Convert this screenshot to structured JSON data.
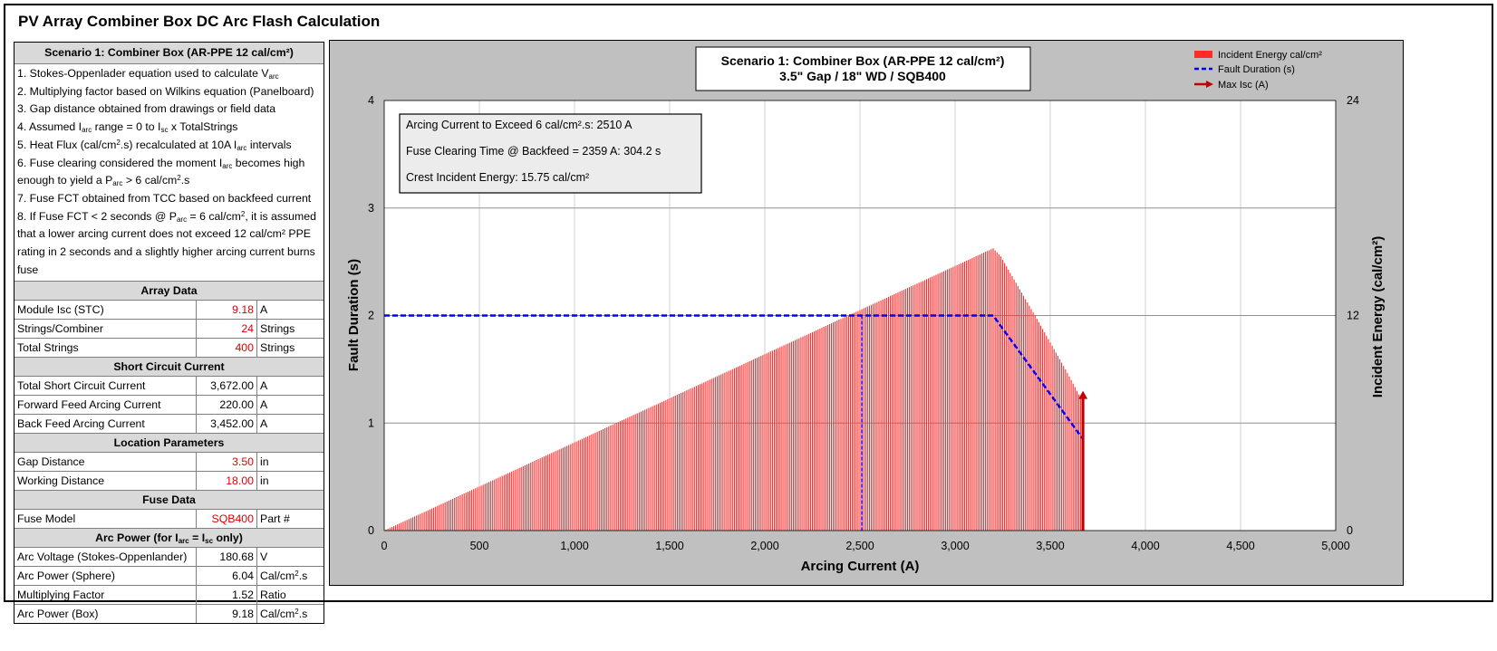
{
  "main_title": "PV Array Combiner Box DC Arc Flash Calculation",
  "scenario_header": "Scenario 1: Combiner Box (AR-PPE 12 cal/cm²)",
  "notes": {
    "n1a": "1. Stokes-Oppenlader equation used to calculate V",
    "n1s": "arc",
    "n2": "2. Multiplying factor based on Wilkins equation (Panelboard)",
    "n3": "3. Gap distance obtained from drawings or field data",
    "n4a": "4. Assumed I",
    "n4s1": "arc",
    "n4b": " range = 0 to I",
    "n4s2": "sc",
    "n4c": " x TotalStrings",
    "n5a": "5. Heat Flux (cal/cm",
    "n5sup": "2",
    "n5b": ".s) recalculated at 10A I",
    "n5s": "arc",
    "n5c": " intervals",
    "n6a": "6. Fuse clearing considered the moment I",
    "n6s1": "arc",
    "n6b": " becomes high enough to yield a P",
    "n6s2": "arc",
    "n6c": "  > 6 cal/cm",
    "n6sup": "2",
    "n6d": ".s",
    "n7": "7. Fuse FCT obtained from TCC based on backfeed current",
    "n8a": "8. If Fuse FCT < 2 seconds @ P",
    "n8s": "arc",
    "n8b": " = 6 cal/cm",
    "n8sup": "2",
    "n8c": ", it is assumed that a lower arcing current does not exceed 12 cal/cm² PPE rating in 2 seconds and a slightly higher arcing current burns fuse"
  },
  "array_data": {
    "header": "Array Data",
    "rows": [
      {
        "label": "Module Isc (STC)",
        "value": "9.18",
        "unit": "A"
      },
      {
        "label": "Strings/Combiner",
        "value": "24",
        "unit": "Strings"
      },
      {
        "label": "Total Strings",
        "value": "400",
        "unit": "Strings"
      }
    ]
  },
  "short_circuit": {
    "header": "Short Circuit Current",
    "rows": [
      {
        "label": "Total Short Circuit Current",
        "value": "3,672.00",
        "unit": "A"
      },
      {
        "label": "Forward Feed Arcing Current",
        "value": "220.00",
        "unit": "A"
      },
      {
        "label": "Back Feed Arcing Current",
        "value": "3,452.00",
        "unit": "A"
      }
    ]
  },
  "location": {
    "header": "Location Parameters",
    "rows": [
      {
        "label": "Gap Distance",
        "value": "3.50",
        "unit": "in"
      },
      {
        "label": "Working Distance",
        "value": "18.00",
        "unit": "in"
      }
    ]
  },
  "fuse": {
    "header": "Fuse Data",
    "rows": [
      {
        "label": "Fuse Model",
        "value": "SQB400",
        "unit": "Part #"
      }
    ]
  },
  "arc_power": {
    "header_a": "Arc Power (for I",
    "header_s1": "arc",
    "header_b": " = I",
    "header_s2": "sc",
    "header_c": " only)",
    "rows": [
      {
        "label": "Arc Voltage (Stokes-Oppenlander)",
        "value": "180.68",
        "unit": "V"
      },
      {
        "label": "Arc Power (Sphere)",
        "value": "6.04",
        "unit_a": "Cal/cm",
        "unit_sup": "2",
        "unit_b": ".s"
      },
      {
        "label": "Multiplying Factor",
        "value": "1.52",
        "unit": "Ratio"
      },
      {
        "label": "Arc Power (Box)",
        "value": "9.18",
        "unit_a": "Cal/cm",
        "unit_sup": "2",
        "unit_b": ".s"
      }
    ]
  },
  "chart_data": {
    "type": "bar",
    "title_line1": "Scenario 1: Combiner Box (AR-PPE 12 cal/cm²)",
    "title_line2": "3.5\" Gap / 18\" WD / SQB400",
    "xlabel": "Arcing Current (A)",
    "ylabel": "Fault Duration (s)",
    "y2label": "Incident Energy (cal/cm²)",
    "xlim": [
      0,
      5000
    ],
    "ylim": [
      0,
      4
    ],
    "y2lim": [
      0,
      24
    ],
    "x_ticks": [
      "0",
      "500",
      "1,000",
      "1,500",
      "2,000",
      "2,500",
      "3,000",
      "3,500",
      "4,000",
      "4,500",
      "5,000"
    ],
    "y_ticks": [
      "0",
      "1",
      "2",
      "3",
      "4"
    ],
    "y2_ticks": [
      "0",
      "12",
      "24"
    ],
    "legend": [
      "Incident Energy cal/cm²",
      "Fault Duration (s)",
      "Max Isc (A)"
    ],
    "legend_position": "top-right",
    "grid": true,
    "incident_energy_bars": {
      "step_A": 10,
      "x_end": 3670,
      "curve": [
        [
          0,
          0
        ],
        [
          3200,
          15.75
        ],
        [
          3240,
          15.3
        ],
        [
          3420,
          12.0
        ],
        [
          3580,
          9.0
        ],
        [
          3670,
          7.2
        ]
      ]
    },
    "fault_duration_line": {
      "x": [
        0,
        2510,
        3200,
        3672
      ],
      "y": [
        2.0,
        2.0,
        2.0,
        0.85
      ]
    },
    "marker_line_x": 2510,
    "max_isc": {
      "x": 3672,
      "y": 1.3
    },
    "annotation": {
      "line1": "Arcing Current to Exceed 6 cal/cm².s:  2510 A",
      "line2": "Fuse Clearing Time @ Backfeed = 2359 A: 304.2 s",
      "line3": "Crest Incident Energy:  15.75 cal/cm²"
    },
    "colors": {
      "bars": "#ff2b2b",
      "fault_line": "#0000ff",
      "marker": "#c00000",
      "plot_bg": "#ffffff",
      "area_bg": "#c0c0c0"
    }
  }
}
